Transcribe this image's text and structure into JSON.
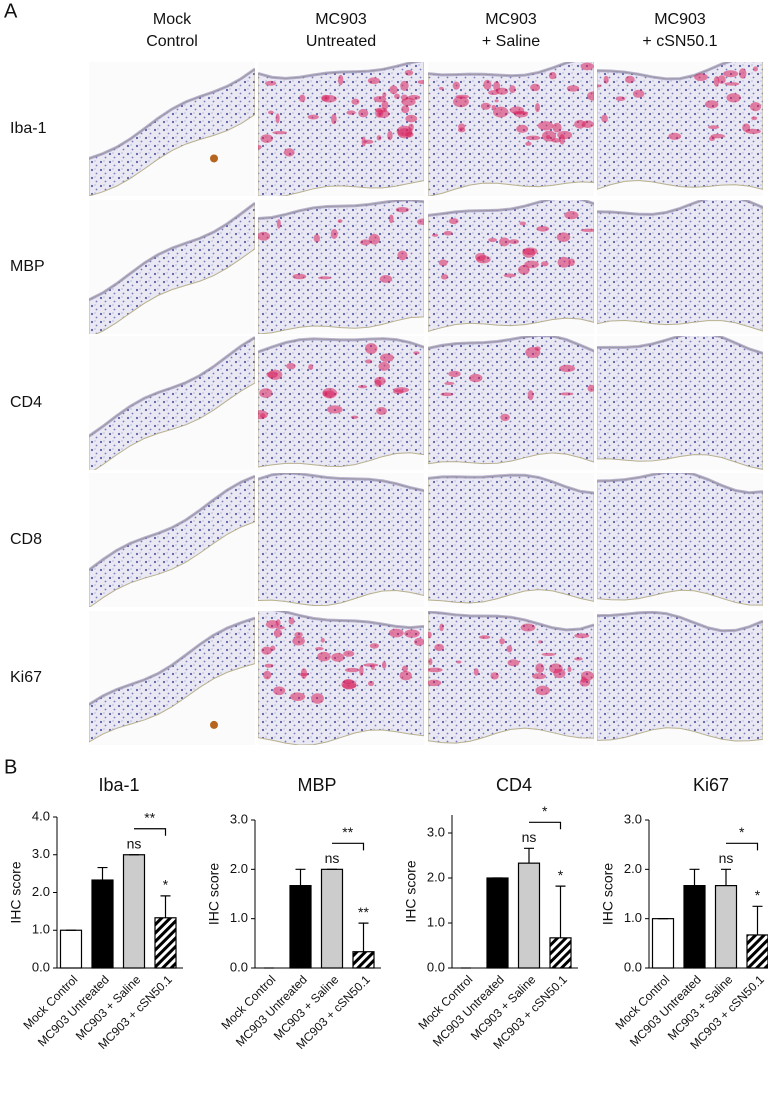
{
  "panel_labels": [
    "A",
    "B"
  ],
  "panel_a": {
    "columns": [
      [
        "Mock",
        "Control"
      ],
      [
        "MC903",
        "Untreated"
      ],
      [
        "MC903",
        "+ Saline"
      ],
      [
        "MC903",
        "+ cSN50.1"
      ]
    ],
    "rows": [
      "Iba-1",
      "MBP",
      "CD4",
      "CD8",
      "Ki67"
    ]
  },
  "chart_data": [
    {
      "type": "bar",
      "title": "Iba-1",
      "y_label": "IHC score",
      "categories": [
        "Mock Control",
        "MC903 Untreated",
        "MC903 + Saline",
        "MC903 + cSN50.1"
      ],
      "values": [
        1,
        2.33,
        3,
        1.33
      ],
      "errors": [
        0,
        0.33,
        0,
        0.58
      ],
      "colors": [
        "#ffffff",
        "#000000",
        "#cccccc",
        "#ffffff"
      ],
      "hatched": [
        false,
        false,
        false,
        true
      ],
      "significance": [
        null,
        null,
        "ns",
        "*"
      ],
      "bracket_label": "**",
      "ylim": [
        0,
        4
      ],
      "yticks": [
        {
          "value": 0,
          "label": "0.0"
        },
        {
          "value": 1,
          "label": "1.0"
        },
        {
          "value": 2,
          "label": "2.0"
        },
        {
          "value": 3,
          "label": "3.0"
        },
        {
          "value": 4,
          "label": "4.0"
        }
      ]
    },
    {
      "type": "bar",
      "title": "MBP",
      "y_label": "IHC score",
      "categories": [
        "Mock Control",
        "MC903 Untreated",
        "MC903 + Saline",
        "MC903 + cSN50.1"
      ],
      "values": [
        0,
        1.67,
        2,
        0.33
      ],
      "errors": [
        0,
        0.33,
        0,
        0.58
      ],
      "colors": [
        "#ffffff",
        "#000000",
        "#cccccc",
        "#ffffff"
      ],
      "hatched": [
        false,
        false,
        false,
        true
      ],
      "significance": [
        null,
        null,
        "ns",
        "**"
      ],
      "bracket_label": "**",
      "ylim": [
        0,
        3
      ],
      "yticks": [
        {
          "value": 0,
          "label": "0.0"
        },
        {
          "value": 1,
          "label": "1.0"
        },
        {
          "value": 2,
          "label": "2.0"
        },
        {
          "value": 3,
          "label": "3.0"
        }
      ]
    },
    {
      "type": "bar",
      "title": "CD4",
      "y_label": "IHC score",
      "categories": [
        "Mock Control",
        "MC903 Untreated",
        "MC903 + Saline",
        "MC903 + cSN50.1"
      ],
      "values": [
        0,
        2,
        2.33,
        0.67
      ],
      "errors": [
        0,
        0,
        0.33,
        1.15
      ],
      "colors": [
        "#ffffff",
        "#000000",
        "#cccccc",
        "#ffffff"
      ],
      "hatched": [
        false,
        false,
        false,
        true
      ],
      "significance": [
        null,
        null,
        "ns",
        "*"
      ],
      "bracket_label": "*",
      "ylim": [
        0,
        3.4
      ],
      "yticks": [
        {
          "value": 0,
          "label": "0.0"
        },
        {
          "value": 1,
          "label": "1.0"
        },
        {
          "value": 2,
          "label": "2.0"
        },
        {
          "value": 3,
          "label": "3.0"
        }
      ]
    },
    {
      "type": "bar",
      "title": "Ki67",
      "y_label": "IHC score",
      "categories": [
        "Mock Control",
        "MC903 Untreated",
        "MC903 + Saline",
        "MC903 + cSN50.1"
      ],
      "values": [
        1,
        1.67,
        1.67,
        0.67
      ],
      "errors": [
        0,
        0.33,
        0.33,
        0.58
      ],
      "colors": [
        "#ffffff",
        "#000000",
        "#cccccc",
        "#ffffff"
      ],
      "hatched": [
        false,
        false,
        false,
        true
      ],
      "significance": [
        null,
        null,
        "ns",
        "*"
      ],
      "bracket_label": "*",
      "ylim": [
        0,
        3
      ],
      "yticks": [
        {
          "value": 0,
          "label": "0.0"
        },
        {
          "value": 1,
          "label": "1.0"
        },
        {
          "value": 2,
          "label": "2.0"
        },
        {
          "value": 3,
          "label": "3.0"
        }
      ]
    }
  ]
}
